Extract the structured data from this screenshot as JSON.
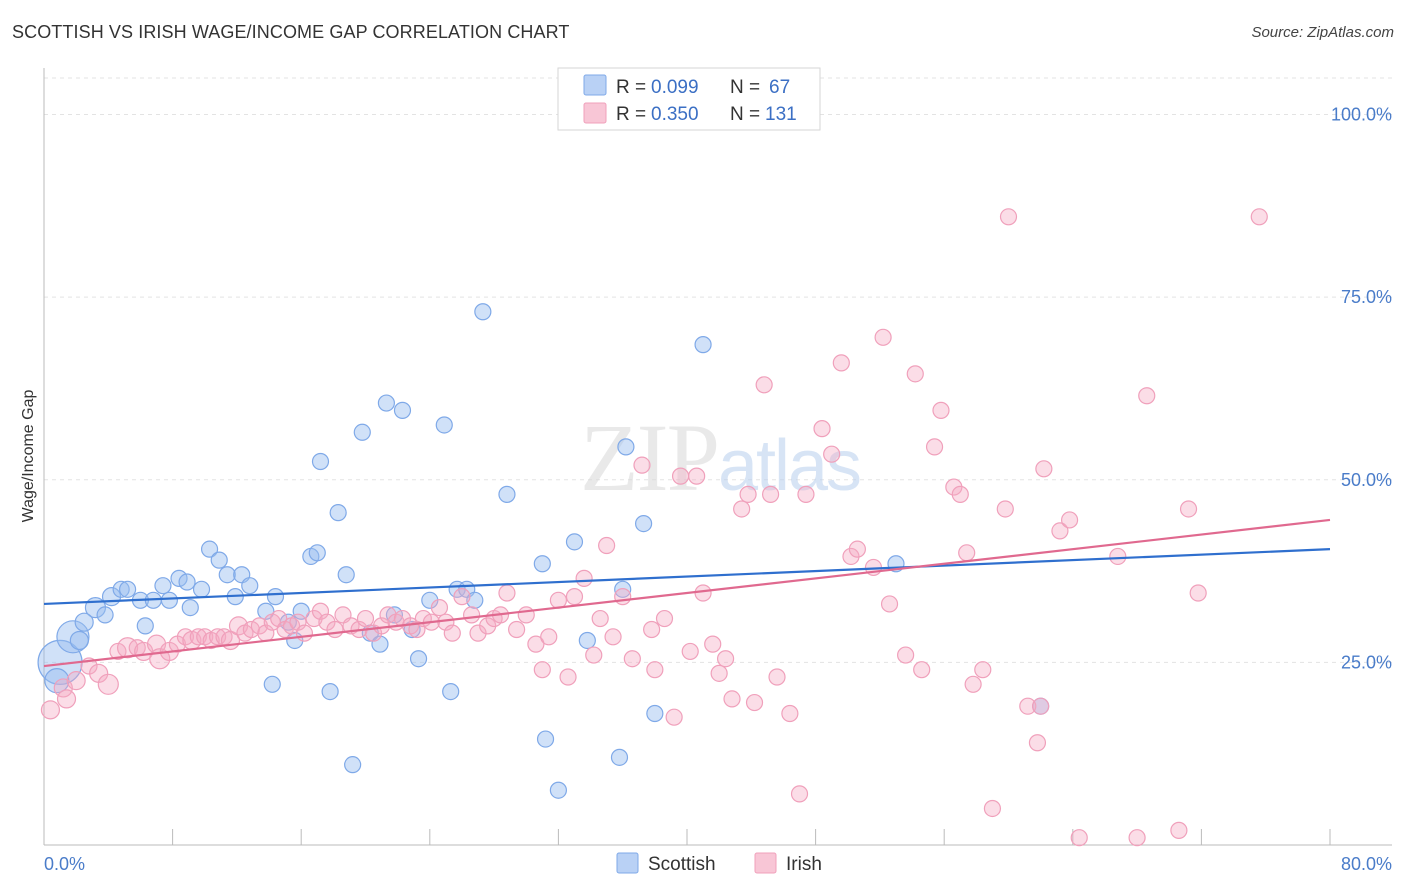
{
  "chart_data": {
    "type": "scatter",
    "title": "SCOTTISH VS IRISH WAGE/INCOME GAP CORRELATION CHART",
    "source": "Source: ZipAtlas.com",
    "xlabel": "",
    "ylabel": "Wage/Income Gap",
    "xlim": [
      0,
      80
    ],
    "ylim": [
      0,
      105
    ],
    "x_tick_labels": [
      "0.0%",
      "80.0%"
    ],
    "y_ticks": [
      25,
      50,
      75,
      100
    ],
    "y_tick_labels": [
      "25.0%",
      "50.0%",
      "75.0%",
      "100.0%"
    ],
    "watermark": "ZIPatlas",
    "legend": [
      {
        "name": "Scottish",
        "r_label": "R =",
        "r": "0.099",
        "n_label": "N =",
        "n": "67",
        "color": "#7fa9e8"
      },
      {
        "name": "Irish",
        "r_label": "R =",
        "r": "0.350",
        "n_label": "N =",
        "n": "131",
        "color": "#f0a0bb"
      }
    ],
    "series": [
      {
        "name": "Scottish",
        "color": "#7fa9e8",
        "line_color": "#2f6fce",
        "trend": {
          "x0": 0,
          "y0": 33,
          "x1": 80,
          "y1": 40.5
        },
        "points": [
          [
            1.0,
            25.0,
            22
          ],
          [
            1.8,
            28.5,
            16
          ],
          [
            0.8,
            22.5,
            12
          ],
          [
            3.2,
            32.5,
            10
          ],
          [
            2.5,
            30.5,
            9
          ],
          [
            2.2,
            28.0,
            9
          ],
          [
            4.2,
            34.0,
            9
          ],
          [
            4.8,
            35.0,
            8
          ],
          [
            5.2,
            35.0,
            8
          ],
          [
            3.8,
            31.5,
            8
          ],
          [
            6.0,
            33.5,
            8
          ],
          [
            6.3,
            30.0,
            8
          ],
          [
            6.8,
            33.5,
            8
          ],
          [
            7.4,
            35.5,
            8
          ],
          [
            7.8,
            33.5,
            8
          ],
          [
            8.4,
            36.5,
            8
          ],
          [
            8.9,
            36.0,
            8
          ],
          [
            9.1,
            32.5,
            8
          ],
          [
            9.8,
            35.0,
            8
          ],
          [
            10.3,
            40.5,
            8
          ],
          [
            10.9,
            39.0,
            8
          ],
          [
            11.4,
            37.0,
            8
          ],
          [
            11.9,
            34.0,
            8
          ],
          [
            12.3,
            37.0,
            8
          ],
          [
            12.8,
            35.5,
            8
          ],
          [
            13.8,
            32.0,
            8
          ],
          [
            14.2,
            22.0,
            8
          ],
          [
            14.4,
            34.0,
            8
          ],
          [
            15.2,
            30.5,
            8
          ],
          [
            15.6,
            28.0,
            8
          ],
          [
            16.0,
            32.0,
            8
          ],
          [
            16.6,
            39.5,
            8
          ],
          [
            17.0,
            40.0,
            8
          ],
          [
            17.2,
            52.5,
            8
          ],
          [
            17.8,
            21.0,
            8
          ],
          [
            18.3,
            45.5,
            8
          ],
          [
            18.8,
            37.0,
            8
          ],
          [
            19.2,
            11.0,
            8
          ],
          [
            19.8,
            56.5,
            8
          ],
          [
            20.3,
            29.0,
            8
          ],
          [
            20.9,
            27.5,
            8
          ],
          [
            21.3,
            60.5,
            8
          ],
          [
            21.8,
            31.5,
            8
          ],
          [
            22.3,
            59.5,
            8
          ],
          [
            22.9,
            29.5,
            8
          ],
          [
            23.3,
            25.5,
            8
          ],
          [
            24.0,
            33.5,
            8
          ],
          [
            24.9,
            57.5,
            8
          ],
          [
            25.3,
            21.0,
            8
          ],
          [
            25.7,
            35.0,
            8
          ],
          [
            26.3,
            35.0,
            8
          ],
          [
            26.8,
            33.5,
            8
          ],
          [
            27.3,
            73.0,
            8
          ],
          [
            28.8,
            48.0,
            8
          ],
          [
            31.0,
            38.5,
            8
          ],
          [
            31.2,
            14.5,
            8
          ],
          [
            32.0,
            7.5,
            8
          ],
          [
            33.0,
            41.5,
            8
          ],
          [
            33.8,
            28.0,
            8
          ],
          [
            36.2,
            54.5,
            8
          ],
          [
            37.3,
            44.0,
            8
          ],
          [
            35.8,
            12.0,
            8
          ],
          [
            36.0,
            35.0,
            8
          ],
          [
            41.0,
            68.5,
            8
          ],
          [
            38.0,
            18.0,
            8
          ],
          [
            53.0,
            38.5,
            8
          ],
          [
            62.0,
            19.0,
            8
          ]
        ]
      },
      {
        "name": "Irish",
        "color": "#f0a0bb",
        "line_color": "#e0698f",
        "trend": {
          "x0": 0,
          "y0": 24.5,
          "x1": 80,
          "y1": 44.5
        },
        "points": [
          [
            0.4,
            18.5,
            9
          ],
          [
            1.2,
            21.5,
            9
          ],
          [
            1.4,
            20.0,
            9
          ],
          [
            2.0,
            22.5,
            9
          ],
          [
            2.8,
            24.5,
            8
          ],
          [
            3.4,
            23.5,
            9
          ],
          [
            4.0,
            22.0,
            10
          ],
          [
            4.6,
            26.5,
            8
          ],
          [
            5.2,
            27.0,
            10
          ],
          [
            5.8,
            27.0,
            8
          ],
          [
            6.2,
            26.5,
            9
          ],
          [
            7.0,
            27.5,
            9
          ],
          [
            7.2,
            25.5,
            10
          ],
          [
            7.8,
            26.5,
            9
          ],
          [
            8.3,
            27.5,
            8
          ],
          [
            8.8,
            28.5,
            8
          ],
          [
            9.2,
            28.0,
            9
          ],
          [
            9.6,
            28.5,
            8
          ],
          [
            10.0,
            28.5,
            8
          ],
          [
            10.4,
            28.0,
            8
          ],
          [
            10.8,
            28.5,
            8
          ],
          [
            11.2,
            28.5,
            8
          ],
          [
            11.6,
            28.0,
            9
          ],
          [
            12.1,
            30.0,
            9
          ],
          [
            12.5,
            29.0,
            8
          ],
          [
            12.9,
            29.5,
            8
          ],
          [
            13.4,
            30.0,
            8
          ],
          [
            13.8,
            29.0,
            8
          ],
          [
            14.2,
            30.5,
            8
          ],
          [
            14.6,
            31.0,
            8
          ],
          [
            15.0,
            29.5,
            8
          ],
          [
            15.4,
            30.0,
            8
          ],
          [
            15.8,
            30.5,
            8
          ],
          [
            16.2,
            29.0,
            8
          ],
          [
            16.8,
            31.0,
            8
          ],
          [
            17.2,
            32.0,
            8
          ],
          [
            17.6,
            30.5,
            8
          ],
          [
            18.1,
            29.5,
            8
          ],
          [
            18.6,
            31.5,
            8
          ],
          [
            19.1,
            30.0,
            8
          ],
          [
            19.6,
            29.5,
            8
          ],
          [
            20.0,
            31.0,
            8
          ],
          [
            20.5,
            29.0,
            8
          ],
          [
            21.0,
            30.0,
            8
          ],
          [
            21.4,
            31.5,
            8
          ],
          [
            21.9,
            30.5,
            8
          ],
          [
            22.3,
            31.0,
            8
          ],
          [
            22.8,
            30.0,
            8
          ],
          [
            23.2,
            29.5,
            8
          ],
          [
            23.6,
            31.0,
            8
          ],
          [
            24.1,
            30.5,
            8
          ],
          [
            24.6,
            32.5,
            8
          ],
          [
            25.0,
            30.5,
            8
          ],
          [
            25.4,
            29.0,
            8
          ],
          [
            26.0,
            34.0,
            8
          ],
          [
            26.6,
            31.5,
            8
          ],
          [
            27.0,
            29.0,
            8
          ],
          [
            27.6,
            30.0,
            8
          ],
          [
            28.0,
            31.0,
            8
          ],
          [
            28.4,
            31.5,
            8
          ],
          [
            28.8,
            34.5,
            8
          ],
          [
            29.4,
            29.5,
            8
          ],
          [
            30.0,
            31.5,
            8
          ],
          [
            30.6,
            27.5,
            8
          ],
          [
            31.0,
            24.0,
            8
          ],
          [
            31.4,
            28.5,
            8
          ],
          [
            32.0,
            33.5,
            8
          ],
          [
            32.6,
            23.0,
            8
          ],
          [
            33.0,
            34.0,
            8
          ],
          [
            33.6,
            36.5,
            8
          ],
          [
            34.2,
            26.0,
            8
          ],
          [
            34.6,
            31.0,
            8
          ],
          [
            35.0,
            41.0,
            8
          ],
          [
            35.4,
            28.5,
            8
          ],
          [
            36.0,
            34.0,
            8
          ],
          [
            36.6,
            25.5,
            8
          ],
          [
            37.2,
            52.0,
            8
          ],
          [
            37.8,
            29.5,
            8
          ],
          [
            38.0,
            24.0,
            8
          ],
          [
            38.6,
            31.0,
            8
          ],
          [
            39.2,
            17.5,
            8
          ],
          [
            39.6,
            50.5,
            8
          ],
          [
            40.2,
            26.5,
            8
          ],
          [
            40.6,
            50.5,
            8
          ],
          [
            41.0,
            34.5,
            8
          ],
          [
            41.6,
            27.5,
            8
          ],
          [
            42.0,
            23.5,
            8
          ],
          [
            42.4,
            25.5,
            8
          ],
          [
            42.8,
            20.0,
            8
          ],
          [
            43.4,
            46.0,
            8
          ],
          [
            43.8,
            48.0,
            8
          ],
          [
            44.2,
            19.5,
            8
          ],
          [
            44.8,
            63.0,
            8
          ],
          [
            45.2,
            48.0,
            8
          ],
          [
            45.6,
            23.0,
            8
          ],
          [
            46.4,
            18.0,
            8
          ],
          [
            47.0,
            7.0,
            8
          ],
          [
            47.4,
            48.0,
            8
          ],
          [
            48.4,
            57.0,
            8
          ],
          [
            49.0,
            53.5,
            8
          ],
          [
            49.6,
            66.0,
            8
          ],
          [
            50.2,
            39.5,
            8
          ],
          [
            50.6,
            40.5,
            8
          ],
          [
            51.6,
            38.0,
            8
          ],
          [
            52.2,
            69.5,
            8
          ],
          [
            52.6,
            33.0,
            8
          ],
          [
            53.6,
            26.0,
            8
          ],
          [
            54.2,
            64.5,
            8
          ],
          [
            54.6,
            24.0,
            8
          ],
          [
            55.4,
            54.5,
            8
          ],
          [
            55.8,
            59.5,
            8
          ],
          [
            56.6,
            49.0,
            8
          ],
          [
            57.0,
            48.0,
            8
          ],
          [
            57.4,
            40.0,
            8
          ],
          [
            57.8,
            22.0,
            8
          ],
          [
            58.4,
            24.0,
            8
          ],
          [
            59.0,
            5.0,
            8
          ],
          [
            59.8,
            46.0,
            8
          ],
          [
            60.0,
            86.0,
            8
          ],
          [
            61.2,
            19.0,
            8
          ],
          [
            61.8,
            14.0,
            8
          ],
          [
            62.2,
            51.5,
            8
          ],
          [
            63.2,
            43.0,
            8
          ],
          [
            63.8,
            44.5,
            8
          ],
          [
            64.4,
            1.0,
            8
          ],
          [
            68.0,
            1.0,
            8
          ],
          [
            68.6,
            61.5,
            8
          ],
          [
            70.6,
            2.0,
            8
          ],
          [
            71.2,
            46.0,
            8
          ],
          [
            71.8,
            34.5,
            8
          ],
          [
            75.6,
            86.0,
            8
          ],
          [
            66.8,
            39.5,
            8
          ],
          [
            62.0,
            19.0,
            8
          ]
        ]
      }
    ]
  }
}
